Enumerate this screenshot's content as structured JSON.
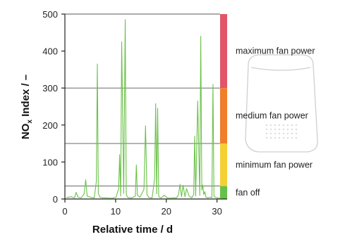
{
  "chart_data": {
    "type": "line",
    "xlabel": "Relative time / d",
    "ylabel": "NOx Index / –",
    "ylabel_main": "NO",
    "ylabel_sub": "x",
    "ylabel_rest": " Index / –",
    "xlim": [
      0,
      32
    ],
    "ylim": [
      0,
      500
    ],
    "xticks": [
      "0",
      "10",
      "20",
      "30"
    ],
    "xtick_values": [
      0,
      10,
      20,
      30
    ],
    "yticks": [
      "0",
      "100",
      "200",
      "300",
      "400",
      "500"
    ],
    "ytick_values": [
      0,
      100,
      200,
      300,
      400,
      500
    ],
    "thresholds": [
      35,
      150,
      300,
      500
    ],
    "zones": [
      {
        "label": "fan off",
        "from": 0,
        "to": 35,
        "color": "#66c14a"
      },
      {
        "label": "minimum fan power",
        "from": 35,
        "to": 150,
        "color": "#f5cf33"
      },
      {
        "label": "medium fan power",
        "from": 150,
        "to": 300,
        "color": "#f07e2a"
      },
      {
        "label": "maximum fan power",
        "from": 300,
        "to": 500,
        "color": "#e25569"
      }
    ],
    "series": [
      {
        "color": "#6cc24a",
        "x": [
          0.3,
          1.2,
          1.9,
          2.2,
          2.6,
          3.2,
          3.8,
          4.1,
          4.4,
          5.0,
          5.8,
          6.2,
          6.4,
          6.6,
          6.9,
          7.4,
          8.2,
          9.0,
          9.6,
          10.1,
          10.6,
          10.8,
          11.0,
          11.2,
          11.6,
          11.9,
          12.1,
          12.3,
          12.7,
          13.2,
          13.9,
          14.1,
          14.3,
          14.8,
          15.6,
          15.9,
          16.2,
          16.6,
          17.2,
          17.7,
          17.9,
          18.1,
          18.3,
          18.5,
          18.7,
          19.0,
          19.6,
          20.2,
          20.7,
          21.2,
          22.0,
          22.4,
          22.7,
          23.0,
          23.3,
          23.7,
          24.0,
          24.5,
          25.0,
          25.4,
          25.6,
          25.8,
          26.2,
          26.6,
          26.8,
          27.0,
          27.2,
          27.4,
          27.6,
          27.8,
          28.2,
          28.6,
          29.0,
          29.2,
          29.4,
          29.6,
          30.1,
          30.6,
          31.0,
          31.2
        ],
        "y": [
          4,
          6,
          3,
          18,
          5,
          3,
          14,
          52,
          8,
          5,
          3,
          48,
          365,
          15,
          5,
          3,
          3,
          2,
          3,
          5,
          28,
          120,
          8,
          425,
          15,
          485,
          14,
          5,
          3,
          3,
          8,
          92,
          10,
          5,
          26,
          198,
          12,
          4,
          3,
          55,
          258,
          14,
          245,
          8,
          4,
          3,
          10,
          3,
          2,
          3,
          3,
          10,
          40,
          6,
          37,
          6,
          28,
          8,
          3,
          12,
          170,
          8,
          265,
          10,
          440,
          24,
          38,
          12,
          20,
          5,
          3,
          5,
          4,
          310,
          8,
          5,
          3,
          2,
          3,
          2
        ]
      }
    ]
  }
}
